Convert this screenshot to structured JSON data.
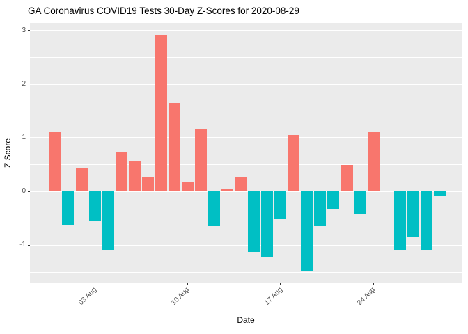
{
  "chart_data": {
    "type": "bar",
    "title": "GA Coronavirus COVID19 Tests 30-Day Z-Scores for 2020-08-29",
    "xlabel": "Date",
    "ylabel": "Z Score",
    "categories": [
      "Jul 31",
      "Aug 01",
      "Aug 02",
      "Aug 03",
      "Aug 04",
      "Aug 05",
      "Aug 06",
      "Aug 07",
      "Aug 08",
      "Aug 09",
      "Aug 10",
      "Aug 11",
      "Aug 12",
      "Aug 13",
      "Aug 14",
      "Aug 15",
      "Aug 16",
      "Aug 17",
      "Aug 18",
      "Aug 19",
      "Aug 20",
      "Aug 21",
      "Aug 22",
      "Aug 23",
      "Aug 24",
      "Aug 25",
      "Aug 26",
      "Aug 27",
      "Aug 28",
      "Aug 29"
    ],
    "values": [
      1.11,
      -0.62,
      0.43,
      -0.55,
      -1.09,
      0.74,
      0.57,
      0.26,
      2.92,
      1.65,
      0.18,
      1.16,
      -0.64,
      0.04,
      0.26,
      -1.12,
      -1.22,
      -0.51,
      1.05,
      -1.48,
      -0.64,
      -0.33,
      0.49,
      -0.42,
      1.11,
      0,
      -1.1,
      -0.84,
      -1.09,
      -0.07
    ],
    "x_tick_indices": [
      3,
      10,
      17,
      24
    ],
    "x_tick_labels": [
      "03 Aug",
      "10 Aug",
      "17 Aug",
      "24 Aug"
    ],
    "y_tick_values": [
      3,
      2,
      1,
      0,
      -1
    ],
    "y_tick_labels": [
      "3",
      "2",
      "1",
      "0",
      "-1"
    ],
    "y_minor_values": [
      2.5,
      1.5,
      0.5,
      -0.5,
      -1.5
    ],
    "ylim": [
      -1.7,
      3.14
    ],
    "grid": true,
    "legend": "none",
    "colors": {
      "positive_bar": "#F8766D",
      "negative_bar": "#00BFC4",
      "panel_background": "#EBEBEB",
      "grid_line": "#FFFFFF",
      "tick_text": "#4D4D4D",
      "axis_text": "#000000"
    }
  }
}
